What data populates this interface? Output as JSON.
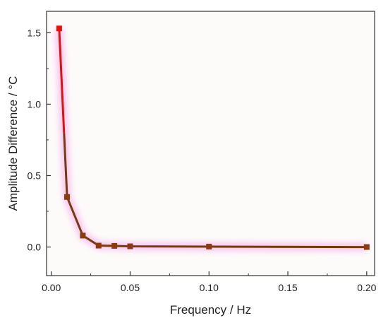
{
  "chart_data": {
    "type": "line",
    "title": "",
    "xlabel": "Frequency / Hz",
    "ylabel": "Amplitude Difference / °C",
    "xlim": [
      -0.003,
      0.205
    ],
    "ylim": [
      -0.2,
      1.65
    ],
    "x_ticks": [
      0.0,
      0.05,
      0.1,
      0.15,
      0.2
    ],
    "x_tick_labels": [
      "0.00",
      "0.05",
      "0.10",
      "0.15",
      "0.20"
    ],
    "y_ticks": [
      0.0,
      0.5,
      1.0,
      1.5
    ],
    "y_tick_labels": [
      "0.0",
      "0.5",
      "1.0",
      "1.5"
    ],
    "grid": false,
    "plot_background": "#fdfafa",
    "series": [
      {
        "x": [
          0.005,
          0.01,
          0.02,
          0.03,
          0.04,
          0.05,
          0.1,
          0.2
        ],
        "y": [
          1.53,
          0.35,
          0.08,
          0.01,
          0.008,
          0.005,
          0.003,
          0.0
        ],
        "line_color": "#7a3a10",
        "highlight_color": "#e41010",
        "marker_color": "#8b3a12",
        "first_marker_color": "#e41010",
        "marker": "square"
      }
    ]
  }
}
